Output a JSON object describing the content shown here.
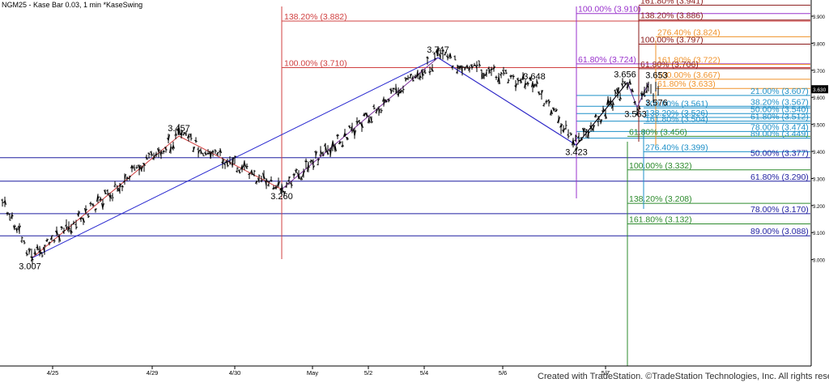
{
  "header": "NGM25 - Kase Bar 0.03, 1 min  *KaseSwing",
  "credit": "Created with TradeStation. ©TradeStation Technologies, Inc. All rights reserved.",
  "chart_data": {
    "type": "bar",
    "symbol": "NGM25",
    "ylim": [
      2.96,
      3.96
    ],
    "y_ticks": [
      "3.900",
      "3.800",
      "3.700",
      "3.600",
      "3.500",
      "3.400",
      "3.300",
      "3.200",
      "3.100",
      "3.000"
    ],
    "current_price": "3.630",
    "x_ticks": [
      "4/25",
      "4/29",
      "4/30",
      "May",
      "5/2",
      "5/4",
      "5/6",
      "5/7"
    ],
    "swing_points": [
      {
        "label": "3.007",
        "price": 3.007
      },
      {
        "label": "3.457",
        "price": 3.457
      },
      {
        "label": "3.260",
        "price": 3.26
      },
      {
        "label": "3.747",
        "price": 3.747
      },
      {
        "label": "3.648",
        "price": 3.648
      },
      {
        "label": "3.423",
        "price": 3.423
      },
      {
        "label": "3.656",
        "price": 3.656
      },
      {
        "label": "3.653",
        "price": 3.653
      },
      {
        "label": "3.563",
        "price": 3.563
      },
      {
        "label": "3.576",
        "price": 3.576
      }
    ],
    "fib_levels": [
      {
        "label": "161.80% (3.941)",
        "price": 3.941,
        "color": "#8b1a1a"
      },
      {
        "label": "100.00% (3.910)",
        "price": 3.91,
        "color": "#9932cc"
      },
      {
        "label": "138.20% (3.886)",
        "price": 3.886,
        "color": "#8b1a1a"
      },
      {
        "label": "138.20% (3.882)",
        "price": 3.882,
        "color": "#d04040"
      },
      {
        "label": "276.40% (3.824)",
        "price": 3.824,
        "color": "#f0922a"
      },
      {
        "label": "100.00% (3.797)",
        "price": 3.797,
        "color": "#8b1a1a"
      },
      {
        "label": "61.80% (3.724)",
        "price": 3.724,
        "color": "#9932cc"
      },
      {
        "label": "161.80% (3.722)",
        "price": 3.722,
        "color": "#f0922a"
      },
      {
        "label": "100.00% (3.710)",
        "price": 3.71,
        "color": "#d04040"
      },
      {
        "label": "61.80% (3.706)",
        "price": 3.706,
        "color": "#8b1a1a"
      },
      {
        "label": "100.00% (3.667)",
        "price": 3.667,
        "color": "#f0922a"
      },
      {
        "label": "61.80% (3.633)",
        "price": 3.633,
        "color": "#f0922a"
      },
      {
        "label": "21.00% (3.607)",
        "price": 3.607,
        "color": "#1e90c8"
      },
      {
        "label": "38.20% (3.567)",
        "price": 3.567,
        "color": "#1e90c8"
      },
      {
        "label": "100.00% (3.561)",
        "price": 3.561,
        "color": "#1e90c8"
      },
      {
        "label": "50.00% (3.540)",
        "price": 3.54,
        "color": "#1e90c8"
      },
      {
        "label": "138.20% (3.526)",
        "price": 3.526,
        "color": "#1e90c8"
      },
      {
        "label": "61.80% (3.512)",
        "price": 3.512,
        "color": "#1e90c8"
      },
      {
        "label": "161.80% (3.504)",
        "price": 3.504,
        "color": "#1e90c8"
      },
      {
        "label": "78.00% (3.474)",
        "price": 3.474,
        "color": "#1e90c8"
      },
      {
        "label": "61.80% (3.456)",
        "price": 3.456,
        "color": "#2e8b2e"
      },
      {
        "label": "89.00% (3.449)",
        "price": 3.449,
        "color": "#1e90c8"
      },
      {
        "label": "276.40% (3.399)",
        "price": 3.399,
        "color": "#1e90c8"
      },
      {
        "label": "50.00% (3.377)",
        "price": 3.377,
        "color": "#1e1ea0"
      },
      {
        "label": "100.00% (3.332)",
        "price": 3.332,
        "color": "#2e8b2e"
      },
      {
        "label": "61.80% (3.290)",
        "price": 3.29,
        "color": "#1e1ea0"
      },
      {
        "label": "138.20% (3.208)",
        "price": 3.208,
        "color": "#2e8b2e"
      },
      {
        "label": "78.00% (3.170)",
        "price": 3.17,
        "color": "#1e1ea0"
      },
      {
        "label": "161.80% (3.132)",
        "price": 3.132,
        "color": "#2e8b2e"
      },
      {
        "label": "89.00% (3.088)",
        "price": 3.088,
        "color": "#1e1ea0"
      }
    ],
    "grid": false
  }
}
